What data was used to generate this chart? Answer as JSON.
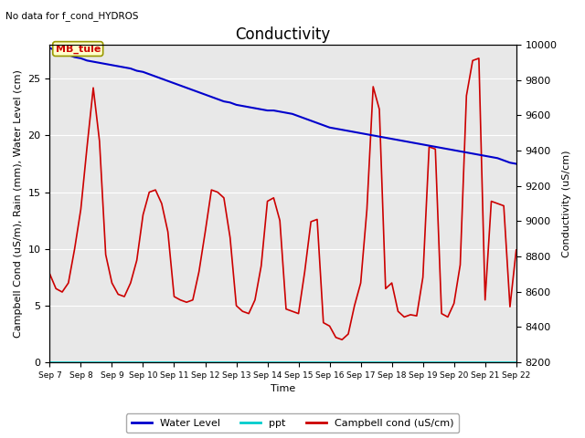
{
  "title": "Conductivity",
  "no_data_text": "No data for f_cond_HYDROS",
  "station_label": "MB_tule",
  "ylabel_left": "Campbell Cond (uS/m), Rain (mm), Water Level (cm)",
  "ylabel_right": "Conductivity (uS/cm)",
  "xlabel": "Time",
  "ylim_left": [
    0,
    28
  ],
  "ylim_right": [
    8200,
    10000
  ],
  "background_color": "#e8e8e8",
  "fig_color": "#ffffff",
  "x_ticks": [
    "Sep 7",
    "Sep 8",
    "Sep 9",
    "Sep 10",
    "Sep 11",
    "Sep 12",
    "Sep 13",
    "Sep 14",
    "Sep 15",
    "Sep 16",
    "Sep 17",
    "Sep 18",
    "Sep 19",
    "Sep 20",
    "Sep 21",
    "Sep 22"
  ],
  "water_level_y": [
    27.7,
    27.5,
    27.3,
    27.1,
    26.9,
    26.8,
    26.6,
    26.5,
    26.4,
    26.3,
    26.2,
    26.1,
    26.0,
    25.9,
    25.7,
    25.6,
    25.4,
    25.2,
    25.0,
    24.8,
    24.6,
    24.4,
    24.2,
    24.0,
    23.8,
    23.6,
    23.4,
    23.2,
    23.0,
    22.9,
    22.7,
    22.6,
    22.5,
    22.4,
    22.3,
    22.2,
    22.2,
    22.1,
    22.0,
    21.9,
    21.7,
    21.5,
    21.3,
    21.1,
    20.9,
    20.7,
    20.6,
    20.5,
    20.4,
    20.3,
    20.2,
    20.1,
    20.0,
    19.9,
    19.8,
    19.7,
    19.6,
    19.5,
    19.4,
    19.3,
    19.2,
    19.1,
    19.0,
    18.9,
    18.8,
    18.7,
    18.6,
    18.5,
    18.4,
    18.3,
    18.2,
    18.1,
    18.0,
    17.8,
    17.6,
    17.5
  ],
  "campbell_y": [
    7.8,
    6.5,
    6.2,
    7.0,
    10.0,
    13.5,
    19.0,
    24.2,
    19.5,
    9.5,
    7.0,
    6.0,
    5.8,
    7.0,
    9.0,
    13.0,
    15.0,
    15.2,
    14.0,
    11.5,
    5.8,
    5.5,
    5.3,
    5.5,
    8.0,
    11.5,
    15.2,
    15.0,
    14.5,
    11.0,
    5.0,
    4.5,
    4.3,
    5.5,
    8.5,
    14.2,
    14.5,
    12.5,
    4.7,
    4.5,
    4.3,
    8.0,
    12.4,
    12.6,
    3.5,
    3.2,
    2.2,
    2.0,
    2.5,
    5.0,
    7.0,
    13.5,
    24.3,
    22.3,
    6.5,
    7.0,
    4.5,
    4.0,
    4.2,
    4.1,
    7.5,
    19.0,
    18.8,
    4.3,
    4.0,
    5.2,
    8.6,
    23.5,
    26.6,
    26.8,
    5.5,
    14.2,
    14.0,
    13.8,
    4.9,
    9.9
  ],
  "legend_water_level_color": "#0000cc",
  "legend_ppt_color": "#00cccc",
  "legend_campbell_color": "#cc0000",
  "grid_color": "#ffffff",
  "grid_linewidth": 0.8,
  "title_fontsize": 12,
  "label_fontsize": 8,
  "tick_fontsize": 8
}
